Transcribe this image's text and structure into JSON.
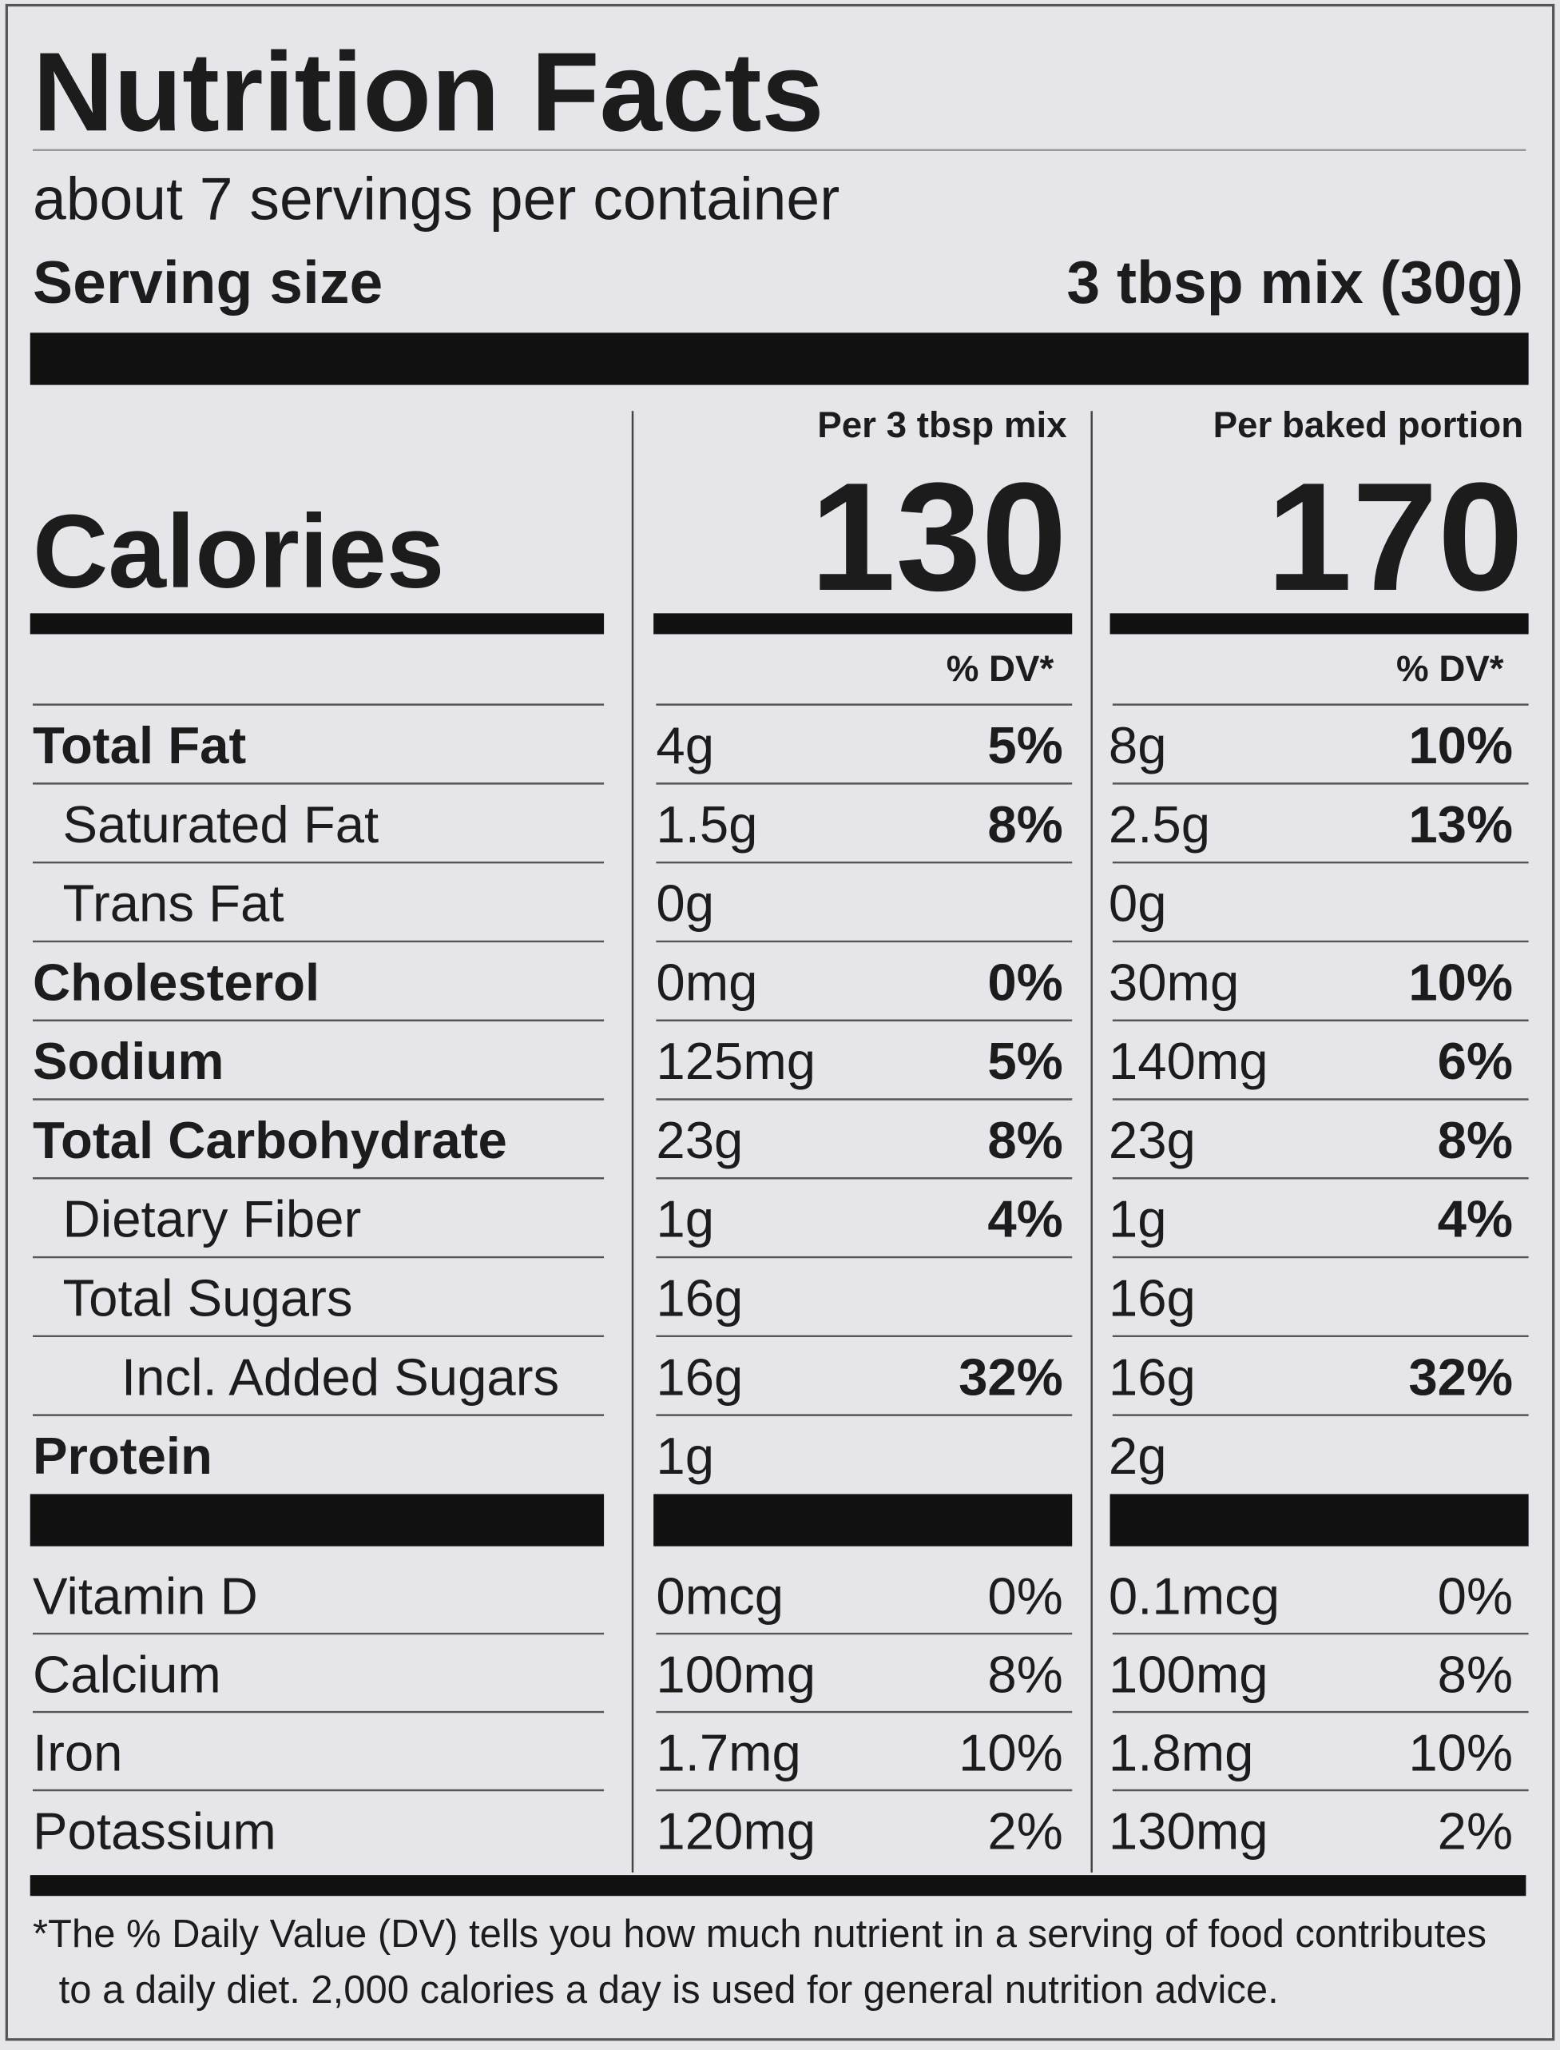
{
  "title": "Nutrition Facts",
  "servings": "about 7 servings per container",
  "serving_size": {
    "label": "Serving size",
    "value": "3 tbsp mix (30g)"
  },
  "calories_label": "Calories",
  "columns": [
    {
      "header": "Per 3 tbsp mix",
      "calories": "130",
      "dv_header": "% DV*"
    },
    {
      "header": "Per baked portion",
      "calories": "170",
      "dv_header": "% DV*"
    }
  ],
  "nutrients": [
    {
      "name": "Total Fat",
      "level": 0,
      "values": [
        [
          "4g",
          "5%"
        ],
        [
          "8g",
          "10%"
        ]
      ]
    },
    {
      "name": "Saturated Fat",
      "level": 1,
      "values": [
        [
          "1.5g",
          "8%"
        ],
        [
          "2.5g",
          "13%"
        ]
      ]
    },
    {
      "name": "Trans Fat",
      "level": 1,
      "values": [
        [
          "0g",
          null
        ],
        [
          "0g",
          null
        ]
      ]
    },
    {
      "name": "Cholesterol",
      "level": 0,
      "values": [
        [
          "0mg",
          "0%"
        ],
        [
          "30mg",
          "10%"
        ]
      ]
    },
    {
      "name": "Sodium",
      "level": 0,
      "values": [
        [
          "125mg",
          "5%"
        ],
        [
          "140mg",
          "6%"
        ]
      ]
    },
    {
      "name": "Total Carbohydrate",
      "level": 0,
      "values": [
        [
          "23g",
          "8%"
        ],
        [
          "23g",
          "8%"
        ]
      ]
    },
    {
      "name": "Dietary Fiber",
      "level": 1,
      "values": [
        [
          "1g",
          "4%"
        ],
        [
          "1g",
          "4%"
        ]
      ]
    },
    {
      "name": "Total Sugars",
      "level": 1,
      "values": [
        [
          "16g",
          null
        ],
        [
          "16g",
          null
        ]
      ]
    },
    {
      "name": "Incl. Added Sugars",
      "level": 2,
      "values": [
        [
          "16g",
          "32%"
        ],
        [
          "16g",
          "32%"
        ]
      ]
    },
    {
      "name": "Protein",
      "level": 0,
      "values": [
        [
          "1g",
          null
        ],
        [
          "2g",
          null
        ]
      ]
    }
  ],
  "vitamins": [
    {
      "name": "Vitamin D",
      "values": [
        [
          "0mcg",
          "0%"
        ],
        [
          "0.1mcg",
          "0%"
        ]
      ]
    },
    {
      "name": "Calcium",
      "values": [
        [
          "100mg",
          "8%"
        ],
        [
          "100mg",
          "8%"
        ]
      ]
    },
    {
      "name": "Iron",
      "values": [
        [
          "1.7mg",
          "10%"
        ],
        [
          "1.8mg",
          "10%"
        ]
      ]
    },
    {
      "name": "Potassium",
      "values": [
        [
          "120mg",
          "2%"
        ],
        [
          "130mg",
          "2%"
        ]
      ]
    }
  ],
  "footnote": [
    "*The % Daily Value (DV) tells you how much nutrient in a serving of food contributes",
    "to a daily diet. 2,000 calories a day is used for general nutrition advice."
  ]
}
